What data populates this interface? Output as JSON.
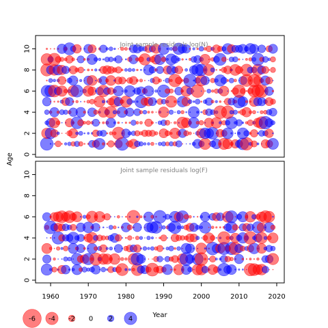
{
  "chart_data": {
    "type": "scatter",
    "subtype": "bubble",
    "panels": [
      {
        "title": "Joint sample residuals log(N)",
        "ages": [
          1,
          2,
          3,
          4,
          5,
          6,
          7,
          8,
          9,
          10
        ],
        "ylim": [
          0,
          11
        ]
      },
      {
        "title": "Joint sample residuals log(F)",
        "ages": [
          1,
          2,
          3,
          4,
          5,
          6
        ],
        "ylim": [
          0,
          11
        ]
      }
    ],
    "year_range": [
      1959,
      2019
    ],
    "xlim": [
      1956,
      2022
    ],
    "xlabel": "Year",
    "ylabel": "Age",
    "x_ticks": [
      1960,
      1970,
      1980,
      1990,
      2000,
      2010,
      2020
    ],
    "y_ticks": [
      0,
      2,
      4,
      6,
      8,
      10
    ],
    "colors": {
      "positive": "#0000ff",
      "negative": "#ff0000",
      "fill_opacity": 0.5
    },
    "legend": {
      "position": "bottom-left",
      "entries": [
        {
          "label": "-6",
          "value": -6
        },
        {
          "label": "-4",
          "value": -4
        },
        {
          "label": "-2",
          "value": -2
        },
        {
          "label": "0",
          "value": 0
        },
        {
          "label": "2",
          "value": 2
        },
        {
          "label": "4",
          "value": 4
        }
      ]
    },
    "series_note": "residual values per year/age are read approximately from bubble size and colour; positive = blue, negative = red"
  }
}
